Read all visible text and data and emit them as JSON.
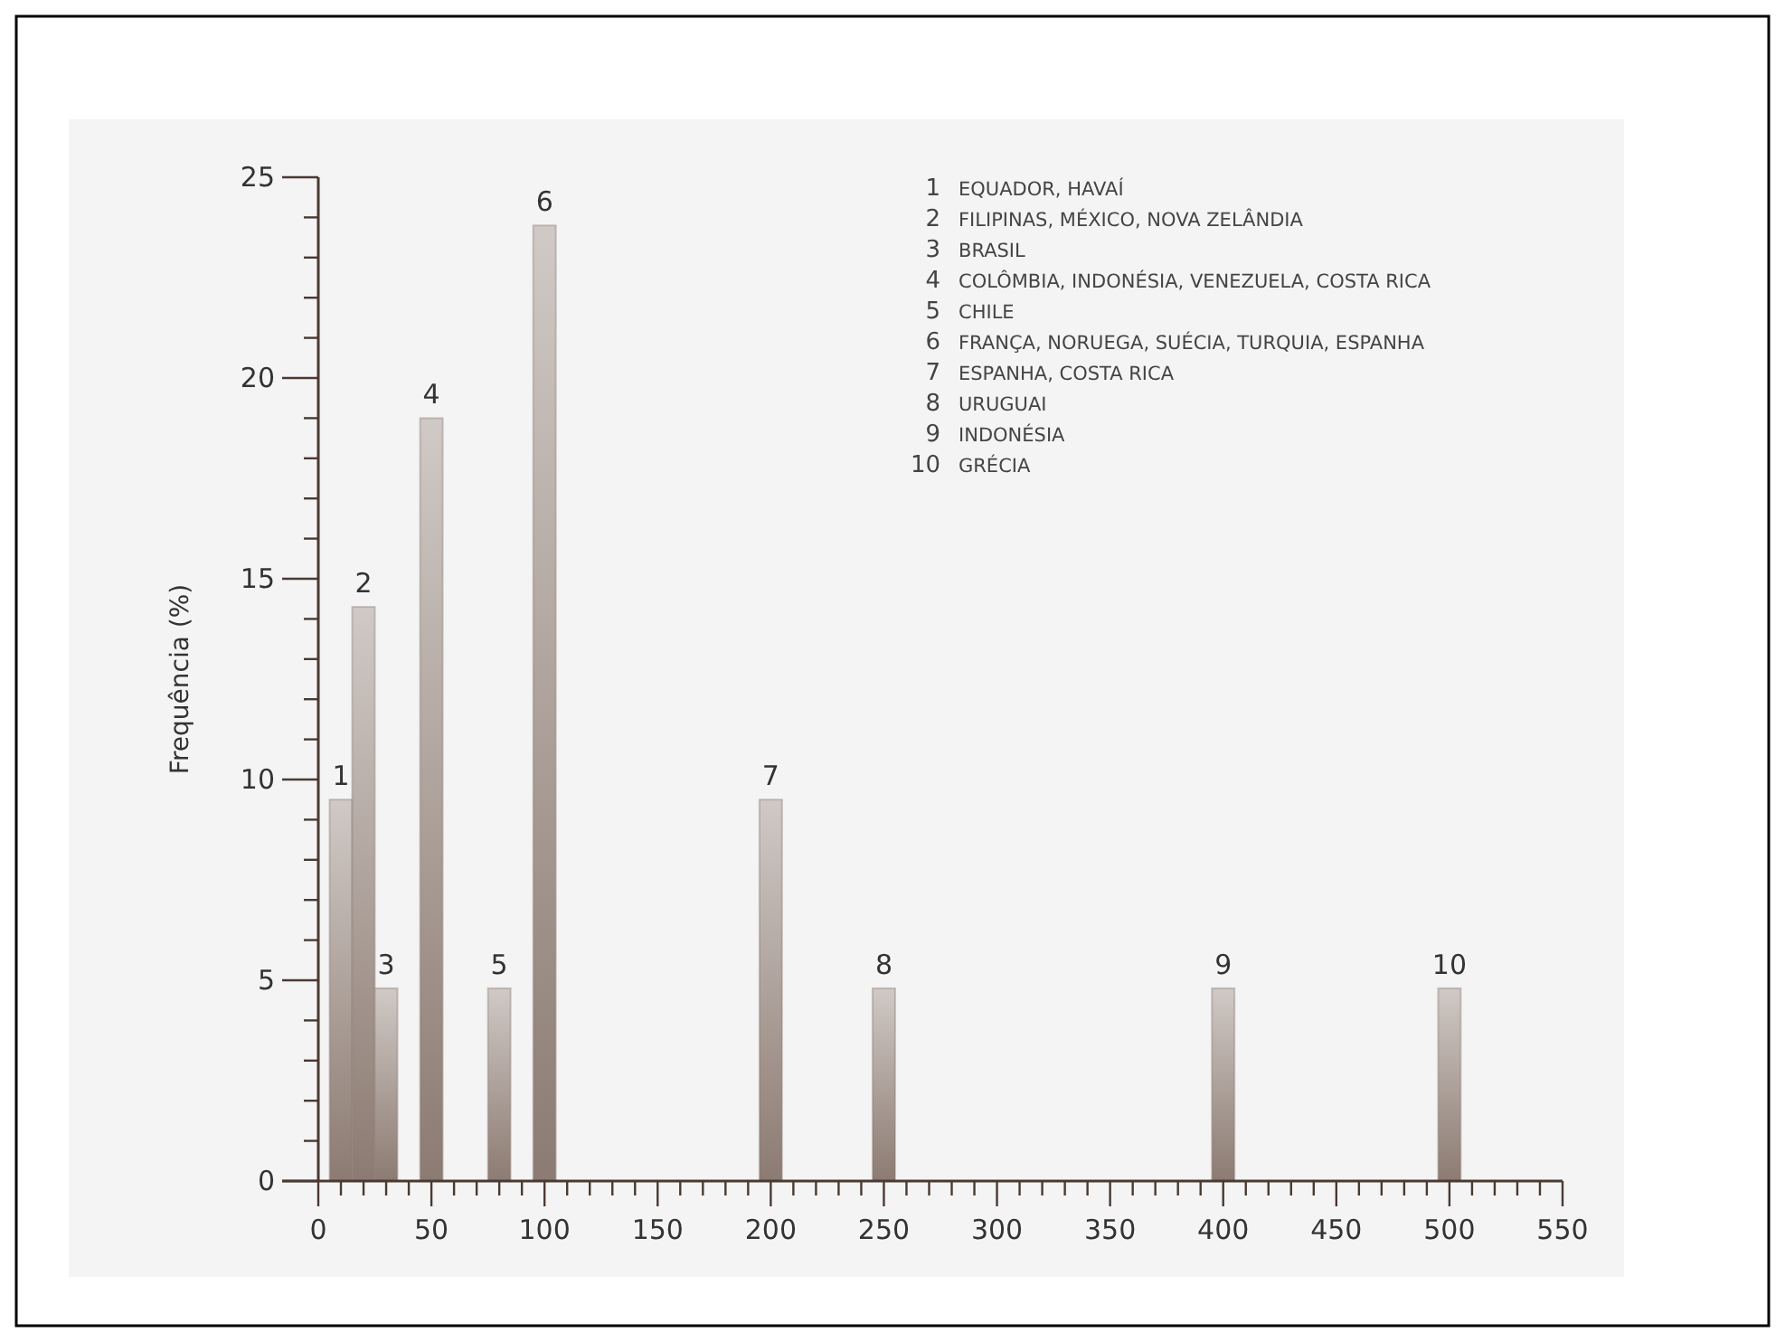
{
  "chart_data": {
    "type": "bar",
    "ylabel": "Frequência (%)",
    "x": [
      10,
      20,
      30,
      50,
      80,
      100,
      200,
      250,
      400,
      500
    ],
    "values": [
      9.5,
      14.3,
      4.8,
      19.0,
      4.8,
      23.8,
      9.5,
      4.8,
      4.8,
      4.8
    ],
    "color": "#8c7b72",
    "xlim": [
      0,
      550
    ],
    "xticks": [
      0,
      {
        "value": 10,
        "label": null
      },
      {
        "value": 20,
        "label": null
      },
      {
        "value": 30,
        "label": null
      },
      {
        "value": 40,
        "label": null
      },
      50,
      {
        "value": 60,
        "label": null
      },
      {
        "value": 70,
        "label": null
      },
      {
        "value": 80,
        "label": null
      },
      {
        "value": 90,
        "label": null
      },
      100,
      {
        "value": 110,
        "label": null
      },
      {
        "value": 120,
        "label": null
      },
      {
        "value": 130,
        "label": null
      },
      {
        "value": 140,
        "label": null
      },
      150,
      {
        "value": 160,
        "label": null
      },
      {
        "value": 170,
        "label": null
      },
      {
        "value": 180,
        "label": null
      },
      {
        "value": 190,
        "label": null
      },
      200,
      {
        "value": 210,
        "label": null
      },
      {
        "value": 220,
        "label": null
      },
      {
        "value": 230,
        "label": null
      },
      {
        "value": 240,
        "label": null
      },
      250,
      {
        "value": 260,
        "label": null
      },
      {
        "value": 270,
        "label": null
      },
      {
        "value": 280,
        "label": null
      },
      {
        "value": 290,
        "label": null
      },
      300,
      {
        "value": 310,
        "label": null
      },
      {
        "value": 320,
        "label": null
      },
      {
        "value": 330,
        "label": null
      },
      {
        "value": 340,
        "label": null
      },
      350,
      {
        "value": 360,
        "label": null
      },
      {
        "value": 370,
        "label": null
      },
      {
        "value": 380,
        "label": null
      },
      {
        "value": 390,
        "label": null
      },
      400,
      {
        "value": 410,
        "label": null
      },
      {
        "value": 420,
        "label": null
      },
      {
        "value": 430,
        "label": null
      },
      {
        "value": 440,
        "label": null
      },
      450,
      {
        "value": 460,
        "label": null
      },
      {
        "value": 470,
        "label": null
      },
      {
        "value": 480,
        "label": null
      },
      {
        "value": 490,
        "label": null
      },
      500,
      {
        "value": 510,
        "label": null
      },
      {
        "value": 520,
        "label": null
      },
      {
        "value": 530,
        "label": null
      },
      {
        "value": 540,
        "label": null
      },
      550
    ],
    "ylim": [
      0,
      25
    ],
    "yticks": [
      0,
      {
        "value": 1,
        "label": null
      },
      {
        "value": 2,
        "label": null
      },
      {
        "value": 3,
        "label": null
      },
      {
        "value": 4,
        "label": null
      },
      5,
      {
        "value": 6,
        "label": null
      },
      {
        "value": 7,
        "label": null
      },
      {
        "value": 8,
        "label": null
      },
      {
        "value": 9,
        "label": null
      },
      10,
      {
        "value": 11,
        "label": null
      },
      {
        "value": 12,
        "label": null
      },
      {
        "value": 13,
        "label": null
      },
      {
        "value": 14,
        "label": null
      },
      15,
      {
        "value": 16,
        "label": null
      },
      {
        "value": 17,
        "label": null
      },
      {
        "value": 18,
        "label": null
      },
      {
        "value": 19,
        "label": null
      },
      20,
      {
        "value": 21,
        "label": null
      },
      {
        "value": 22,
        "label": null
      },
      {
        "value": 23,
        "label": null
      },
      {
        "value": 24,
        "label": null
      },
      25
    ],
    "annotations": [
      {
        "text": "1",
        "x": 10,
        "y": 9.5
      },
      {
        "text": "2",
        "x": 20,
        "y": 14.3
      },
      {
        "text": "3",
        "x": 30,
        "y": 4.8
      },
      {
        "text": "4",
        "x": 50,
        "y": 19.0
      },
      {
        "text": "5",
        "x": 80,
        "y": 4.8
      },
      {
        "text": "6",
        "x": 100,
        "y": 23.8
      },
      {
        "text": "7",
        "x": 200,
        "y": 9.5
      },
      {
        "text": "8",
        "x": 250,
        "y": 4.8
      },
      {
        "text": "9",
        "x": 400,
        "y": 4.8
      },
      {
        "text": "10",
        "x": 500,
        "y": 4.8
      },
      "1 EQUADOR, HAVAÍ",
      "2 FILIPINAS, MÉXICO, NOVA ZELÂNDIA",
      "3 BRASIL",
      "4 COLÔMBIA, INDONÉSIA, VENEZUELA, COSTA RICA",
      "5 CHILE",
      "6 FRANÇA, NORUEGA, SUÉCIA, TURQUIA, ESPANHA",
      "7 ESPANHA, COSTA RICA",
      "8 URUGUAI",
      "9 INDONÉSIA",
      "10 GRÉCIA"
    ]
  }
}
